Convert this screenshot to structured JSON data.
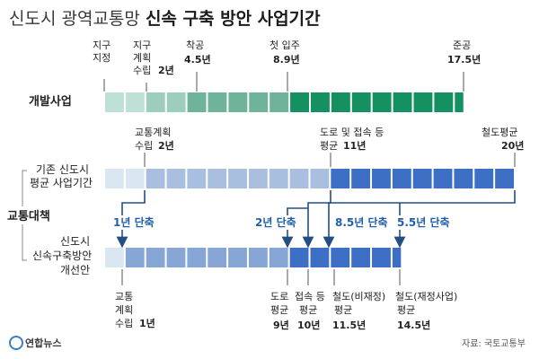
{
  "title": {
    "light": "신도시 광역교통망",
    "bold": "신속 구축 방안 사업기간"
  },
  "dev": {
    "label": "개발사업",
    "milestones": [
      {
        "line1": "지구",
        "line2": "지정",
        "line3": "",
        "value": ""
      },
      {
        "line1": "지구",
        "line2": "계획",
        "line3": "수립",
        "value": "2년"
      },
      {
        "line1": "착공",
        "line2": "",
        "line3": "",
        "value": "4.5년"
      },
      {
        "line1": "첫 입주",
        "line2": "",
        "line3": "",
        "value": "8.9년"
      },
      {
        "line1": "준공",
        "line2": "",
        "line3": "",
        "value": "17.5년"
      }
    ]
  },
  "transport": {
    "group_label": "교통대책",
    "existing": {
      "label_line1": "기존 신도시",
      "label_line2": "평균 사업기간",
      "top_labels": [
        {
          "line1": "교통계획",
          "line2": "수립",
          "value": "2년"
        },
        {
          "line1": "도로 및 접속 등",
          "line2": "평균",
          "value": "11년"
        },
        {
          "line1": "철도평균",
          "line2": "",
          "value": "20년"
        }
      ]
    },
    "reductions": [
      "1년 단축",
      "2년 단축",
      "8.5년 단축",
      "5.5년 단축"
    ],
    "new_plan": {
      "label_line1": "신도시",
      "label_line2": "신속구축방안",
      "label_line3": "개선안",
      "bottom_labels": [
        {
          "line1": "교통",
          "line2": "계획",
          "line3": "수립",
          "value": "1년"
        },
        {
          "line1": "도로",
          "line2": "평균",
          "line3": "",
          "value": "9년"
        },
        {
          "line1": "접속 등",
          "line2": "평균",
          "line3": "",
          "value": "10년"
        },
        {
          "line1": "철도(비재정)",
          "line2": "평균",
          "line3": "",
          "value": "11.5년"
        },
        {
          "line1": "철도(재정사업)",
          "line2": "평균",
          "line3": "",
          "value": "14.5년"
        }
      ]
    }
  },
  "footer": {
    "logo": "연합뉴스",
    "source": "자료: 국토교통부"
  },
  "colors": {
    "dev_light": "#bfe0d6",
    "dev_mid": "#6fb39a",
    "dev_dark": "#159061",
    "blue_pale": "#dbe6f3",
    "blue_light": "#a9bfe0",
    "blue_mid": "#86a6d6",
    "blue_dark": "#3d70c4",
    "arrow": "#234e83"
  }
}
